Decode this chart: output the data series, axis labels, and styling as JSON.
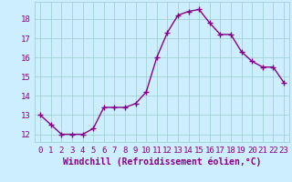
{
  "x": [
    0,
    1,
    2,
    3,
    4,
    5,
    6,
    7,
    8,
    9,
    10,
    11,
    12,
    13,
    14,
    15,
    16,
    17,
    18,
    19,
    20,
    21,
    22,
    23
  ],
  "y": [
    13.0,
    12.5,
    12.0,
    12.0,
    12.0,
    12.3,
    13.4,
    13.4,
    13.4,
    13.6,
    14.2,
    16.0,
    17.3,
    18.2,
    18.4,
    18.5,
    17.8,
    17.2,
    17.2,
    16.3,
    15.8,
    15.5,
    15.5,
    14.7
  ],
  "line_color": "#880088",
  "marker": "+",
  "markersize": 4,
  "linewidth": 1.0,
  "markeredgewidth": 1.0,
  "background_color": "#cceeff",
  "grid_color": "#99cccc",
  "xlabel": "Windchill (Refroidissement éolien,°C)",
  "xlabel_fontsize": 7,
  "ylabel_ticks": [
    12,
    13,
    14,
    15,
    16,
    17,
    18
  ],
  "xlim": [
    -0.5,
    23.5
  ],
  "ylim": [
    11.6,
    18.9
  ],
  "tick_fontsize": 6.5
}
